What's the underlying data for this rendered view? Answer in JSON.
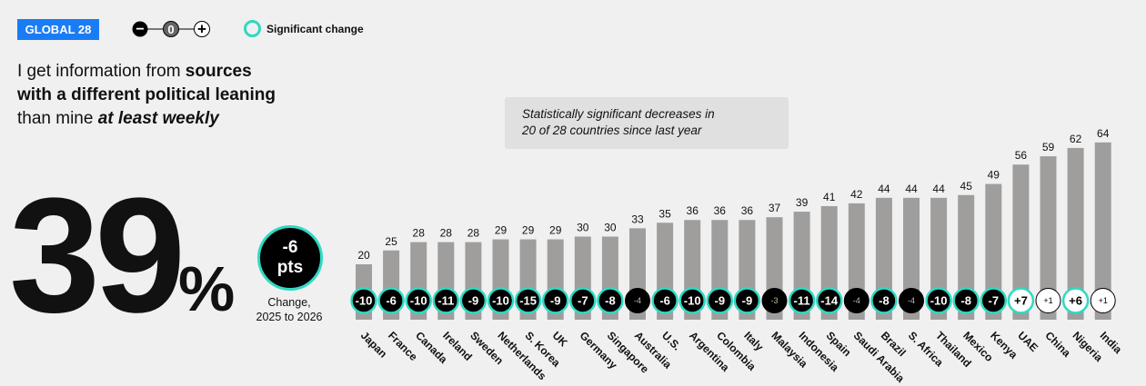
{
  "badge": "GLOBAL 28",
  "legend": {
    "minus": "−",
    "zero": "0",
    "plus": "+",
    "significant": "Significant change"
  },
  "headline": {
    "part1": "I get information from ",
    "bold1": "sources",
    "bold2": "with a different political leaning",
    "part3": "than mine ",
    "emph": "at least weekly"
  },
  "summary": {
    "value": "39",
    "unit": "%",
    "change": "-6",
    "change_unit": "pts",
    "change_label1": "Change,",
    "change_label2": "2025 to 2026"
  },
  "note": {
    "line1": "Statistically significant decreases in",
    "line2": "20 of 28 countries since last year"
  },
  "colors": {
    "bar": "#a09e9d",
    "accent": "#2fd9c3",
    "badge": "#1a7cf5",
    "background": "#f0f0f0"
  },
  "chart_data": {
    "type": "bar",
    "title": "I get information from sources with a different political leaning than mine at least weekly",
    "categories": [
      "Japan",
      "France",
      "Canada",
      "Ireland",
      "Sweden",
      "Netherlands",
      "S. Korea",
      "UK",
      "Germany",
      "Singapore",
      "Australia",
      "U.S.",
      "Argentina",
      "Colombia",
      "Italy",
      "Malaysia",
      "Indonesia",
      "Spain",
      "Saudi Arabia",
      "Brazil",
      "S. Africa",
      "Thailand",
      "Mexico",
      "Kenya",
      "UAE",
      "China",
      "Nigeria",
      "India"
    ],
    "values": [
      20,
      25,
      28,
      28,
      28,
      29,
      29,
      29,
      30,
      30,
      33,
      35,
      36,
      36,
      36,
      37,
      39,
      41,
      42,
      44,
      44,
      44,
      45,
      49,
      56,
      59,
      62,
      64
    ],
    "changes": [
      "-10",
      "-6",
      "-10",
      "-11",
      "-9",
      "-10",
      "-15",
      "-9",
      "-7",
      "-8",
      "-4",
      "-6",
      "-10",
      "-9",
      "-9",
      "-3",
      "-11",
      "-14",
      "-4",
      "-8",
      "-4",
      "-10",
      "-8",
      "-7",
      "+7",
      "+1",
      "+6",
      "+1"
    ],
    "significant": [
      true,
      true,
      true,
      true,
      true,
      true,
      true,
      true,
      true,
      true,
      false,
      true,
      true,
      true,
      true,
      false,
      true,
      true,
      false,
      true,
      false,
      true,
      true,
      true,
      true,
      false,
      true,
      false
    ],
    "ylim": [
      0,
      70
    ],
    "xlabel": "",
    "ylabel": "",
    "grid": false
  }
}
